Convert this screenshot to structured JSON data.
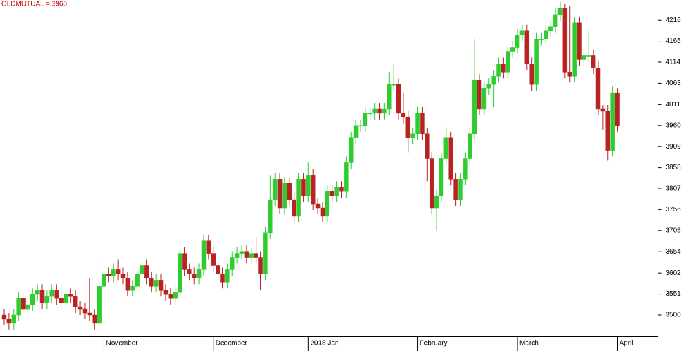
{
  "chart_data": {
    "type": "candlestick",
    "title": "OLDMUTUAL = 3960",
    "categories": [
      null,
      null,
      null,
      null,
      null,
      null,
      null,
      null,
      null,
      null,
      null,
      null,
      null,
      null,
      null,
      null,
      null,
      null,
      null,
      null,
      null,
      "November",
      null,
      null,
      null,
      null,
      null,
      null,
      null,
      null,
      null,
      null,
      null,
      null,
      null,
      null,
      null,
      null,
      null,
      null,
      null,
      null,
      null,
      null,
      "December",
      null,
      null,
      null,
      null,
      null,
      null,
      null,
      null,
      null,
      null,
      null,
      null,
      null,
      null,
      null,
      null,
      null,
      null,
      null,
      "2018 Jan",
      null,
      null,
      null,
      null,
      null,
      null,
      null,
      null,
      null,
      null,
      null,
      null,
      null,
      null,
      null,
      null,
      null,
      null,
      null,
      null,
      null,
      null,
      "February",
      null,
      null,
      null,
      null,
      null,
      null,
      null,
      null,
      null,
      null,
      null,
      null,
      null,
      null,
      null,
      null,
      null,
      null,
      null,
      null,
      "March",
      null,
      null,
      null,
      null,
      null,
      null,
      null,
      null,
      null,
      null,
      null,
      null,
      null,
      null,
      null,
      null,
      null,
      null,
      null,
      null,
      "April"
    ],
    "open": [
      3500,
      3490,
      3480,
      3500,
      3540,
      3515,
      3525,
      3550,
      3560,
      3530,
      3545,
      3560,
      3540,
      3530,
      3550,
      3545,
      3520,
      3515,
      3505,
      3500,
      3480,
      3570,
      3600,
      3595,
      3610,
      3600,
      3590,
      3560,
      3570,
      3600,
      3620,
      3590,
      3570,
      3585,
      3560,
      3550,
      3540,
      3555,
      3650,
      3610,
      3600,
      3590,
      3610,
      3680,
      3650,
      3620,
      3600,
      3580,
      3610,
      3640,
      3650,
      3655,
      3640,
      3650,
      3640,
      3600,
      3700,
      3780,
      3830,
      3760,
      3820,
      3780,
      3740,
      3830,
      3790,
      3840,
      3770,
      3760,
      3740,
      3800,
      3790,
      3810,
      3800,
      3870,
      3930,
      3960,
      3960,
      3990,
      3990,
      4000,
      3990,
      4000,
      4060,
      4060,
      3990,
      3980,
      3930,
      3940,
      3990,
      3940,
      3880,
      3760,
      3790,
      3880,
      3930,
      3830,
      3780,
      3830,
      3880,
      3940,
      4070,
      4000,
      4050,
      4060,
      4080,
      4110,
      4090,
      4140,
      4150,
      4180,
      4190,
      4110,
      4060,
      4170,
      4170,
      4190,
      4200,
      4230,
      4245,
      4090,
      4080,
      4210,
      4120,
      4130,
      4130,
      4100,
      4000,
      3995,
      3900,
      4040
    ],
    "high": [
      3515,
      3505,
      3515,
      3555,
      3555,
      3540,
      3565,
      3575,
      3575,
      3560,
      3575,
      3575,
      3555,
      3565,
      3565,
      3560,
      3535,
      3530,
      3590,
      3515,
      3585,
      3640,
      3615,
      3625,
      3635,
      3615,
      3605,
      3585,
      3615,
      3635,
      3635,
      3605,
      3600,
      3600,
      3575,
      3565,
      3570,
      3665,
      3665,
      3625,
      3615,
      3625,
      3695,
      3695,
      3665,
      3635,
      3615,
      3625,
      3655,
      3665,
      3670,
      3670,
      3665,
      3690,
      3655,
      3715,
      3840,
      3845,
      3845,
      3835,
      3835,
      3795,
      3845,
      3845,
      3870,
      3855,
      3785,
      3775,
      3815,
      3815,
      3825,
      3825,
      3885,
      3945,
      3975,
      3975,
      4005,
      4005,
      4015,
      4015,
      4015,
      4090,
      4110,
      4075,
      4040,
      3995,
      3955,
      4005,
      4005,
      3955,
      3895,
      3805,
      3895,
      3955,
      3945,
      3845,
      3845,
      3895,
      3955,
      4170,
      4085,
      4065,
      4075,
      4095,
      4125,
      4125,
      4155,
      4165,
      4195,
      4205,
      4205,
      4125,
      4185,
      4185,
      4205,
      4215,
      4245,
      4260,
      4255,
      4250,
      4225,
      4225,
      4145,
      4190,
      4145,
      4115,
      4010,
      4010,
      4055,
      4050
    ],
    "low": [
      3475,
      3465,
      3465,
      3485,
      3500,
      3500,
      3510,
      3535,
      3515,
      3515,
      3530,
      3525,
      3515,
      3515,
      3530,
      3505,
      3500,
      3490,
      3485,
      3465,
      3465,
      3555,
      3580,
      3580,
      3585,
      3575,
      3545,
      3545,
      3555,
      3585,
      3575,
      3555,
      3555,
      3545,
      3535,
      3525,
      3525,
      3540,
      3595,
      3585,
      3575,
      3575,
      3595,
      3635,
      3605,
      3585,
      3565,
      3565,
      3595,
      3625,
      3635,
      3625,
      3625,
      3625,
      3560,
      3585,
      3685,
      3765,
      3745,
      3745,
      3765,
      3725,
      3725,
      3775,
      3775,
      3755,
      3745,
      3725,
      3725,
      3775,
      3775,
      3785,
      3785,
      3855,
      3915,
      3945,
      3945,
      3975,
      3975,
      3975,
      3975,
      3985,
      4045,
      3975,
      3965,
      3895,
      3915,
      3925,
      3925,
      3825,
      3745,
      3705,
      3775,
      3865,
      3815,
      3765,
      3765,
      3815,
      3865,
      3925,
      3985,
      3985,
      4035,
      4005,
      4065,
      4075,
      4075,
      4125,
      4135,
      4165,
      4095,
      4045,
      4045,
      4155,
      4155,
      4175,
      4185,
      4215,
      4075,
      4065,
      4065,
      4105,
      4105,
      4115,
      4085,
      3985,
      3950,
      3875,
      3885,
      3945
    ],
    "close": [
      3490,
      3480,
      3500,
      3540,
      3515,
      3525,
      3550,
      3560,
      3530,
      3545,
      3560,
      3540,
      3530,
      3550,
      3545,
      3520,
      3515,
      3505,
      3500,
      3480,
      3570,
      3600,
      3595,
      3610,
      3600,
      3590,
      3560,
      3570,
      3600,
      3620,
      3590,
      3570,
      3585,
      3560,
      3550,
      3540,
      3555,
      3650,
      3610,
      3600,
      3590,
      3610,
      3680,
      3650,
      3620,
      3600,
      3580,
      3610,
      3640,
      3650,
      3655,
      3640,
      3650,
      3640,
      3600,
      3700,
      3780,
      3830,
      3760,
      3820,
      3780,
      3740,
      3830,
      3790,
      3840,
      3770,
      3760,
      3740,
      3800,
      3790,
      3810,
      3800,
      3870,
      3930,
      3960,
      3960,
      3990,
      3990,
      4000,
      3990,
      4000,
      4060,
      4060,
      3990,
      3980,
      3930,
      3940,
      3990,
      3940,
      3880,
      3760,
      3790,
      3880,
      3930,
      3830,
      3780,
      3830,
      3880,
      3940,
      4070,
      4000,
      4050,
      4060,
      4080,
      4110,
      4090,
      4140,
      4150,
      4180,
      4190,
      4110,
      4060,
      4170,
      4170,
      4190,
      4200,
      4230,
      4245,
      4090,
      4080,
      4210,
      4120,
      4130,
      4130,
      4100,
      4000,
      3995,
      3900,
      4040,
      3960
    ],
    "ylim": [
      3448,
      4265
    ],
    "yticks": [
      3500,
      3551,
      3602,
      3654,
      3705,
      3756,
      3807,
      3858,
      3909,
      3960,
      4011,
      4063,
      4114,
      4165,
      4216
    ],
    "up_color": "#2ecc2e",
    "down_color": "#b82222"
  }
}
